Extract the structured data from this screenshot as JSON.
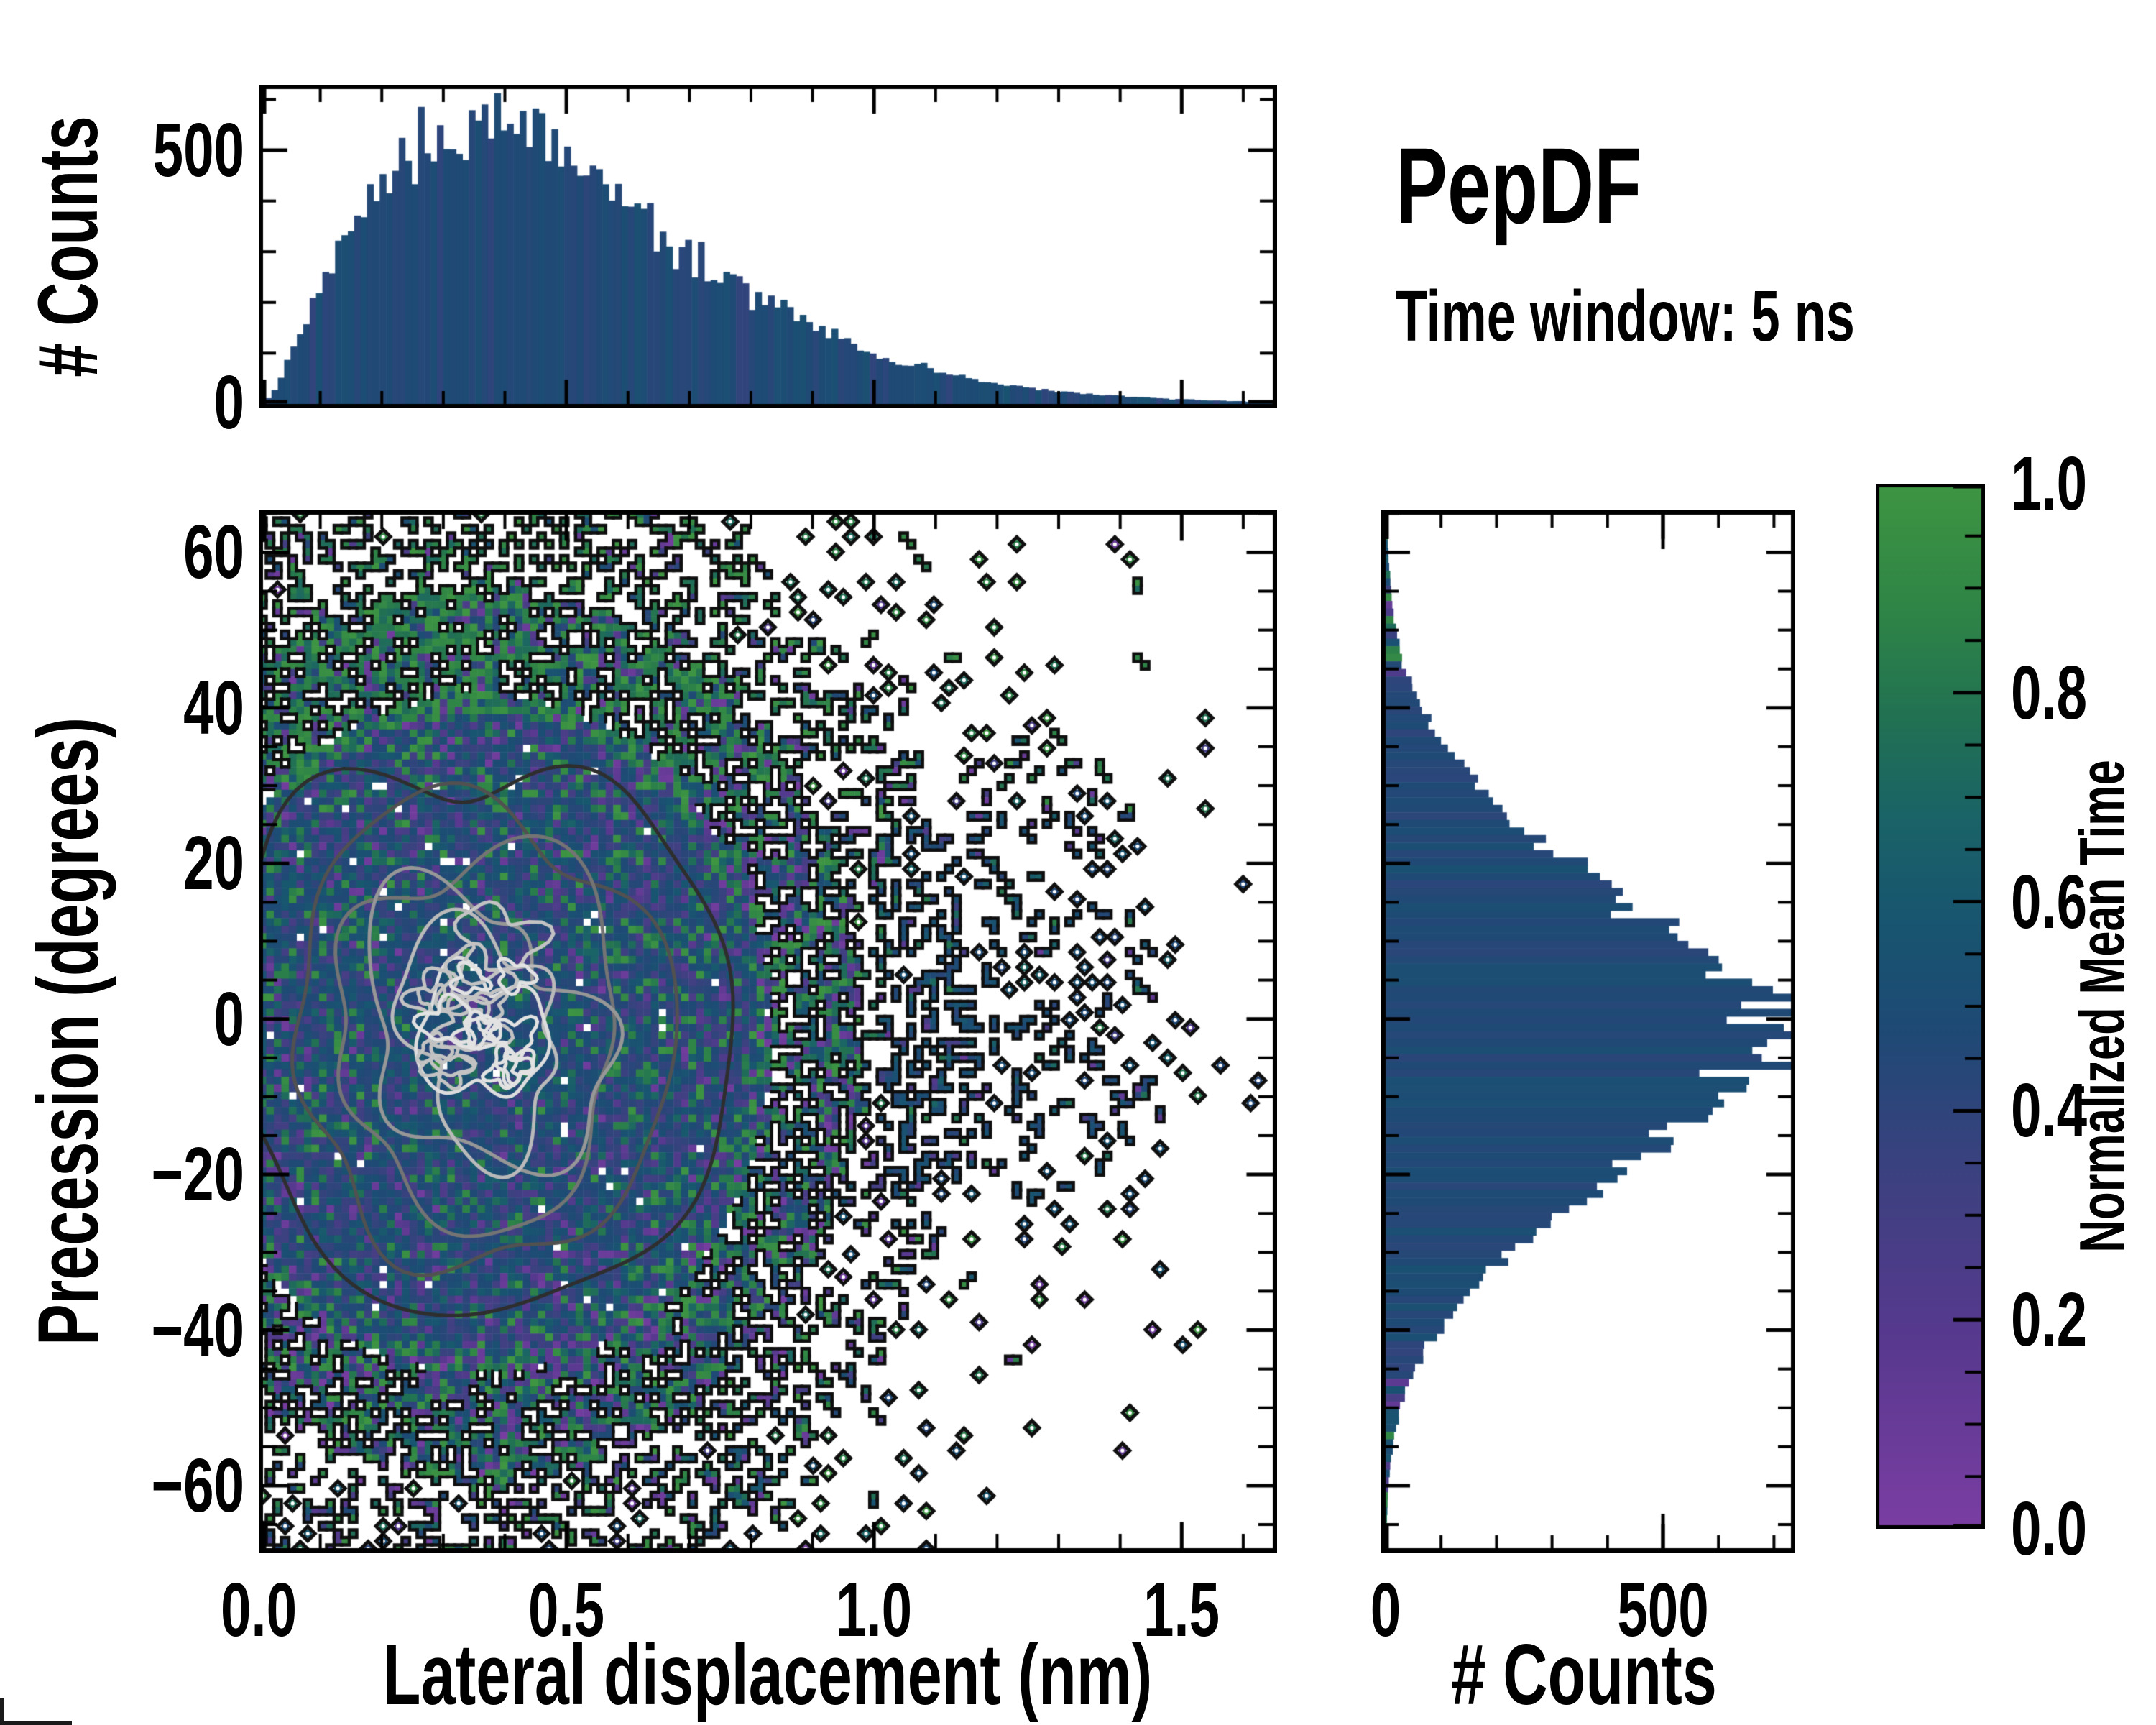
{
  "figure": {
    "title": "PepDF",
    "subtitle": "Time window: 5 ns"
  },
  "axes": {
    "top_hist": {
      "ylabel": "# Counts",
      "yticks": {
        "labels": [
          "0",
          "500"
        ],
        "values": [
          0,
          500
        ],
        "minor": [
          100,
          200,
          300,
          400,
          600
        ]
      }
    },
    "main": {
      "xlabel": "Lateral displacement (nm)",
      "ylabel": "Precession (degrees)",
      "xticks": {
        "labels": [
          "0.0",
          "0.5",
          "1.0",
          "1.5"
        ],
        "values": [
          0,
          0.5,
          1.0,
          1.5
        ],
        "minor_step": 0.1
      },
      "yticks": {
        "labels": [
          "60",
          "40",
          "20",
          "0",
          "−20",
          "−40",
          "−60"
        ],
        "values": [
          60,
          40,
          20,
          0,
          -20,
          -40,
          -60
        ],
        "minor_step": 5
      }
    },
    "right_hist": {
      "xlabel": "# Counts",
      "xticks": {
        "labels": [
          "0",
          "500"
        ],
        "values": [
          0,
          500
        ],
        "minor": [
          100,
          200,
          300,
          400,
          600,
          700
        ]
      }
    },
    "colorbar": {
      "label": "Normalized Mean Time",
      "ticks": {
        "labels": [
          "1.0",
          "0.8",
          "0.6",
          "0.4",
          "0.2",
          "0.0"
        ],
        "values": [
          1.0,
          0.8,
          0.6,
          0.4,
          0.2,
          0.0
        ],
        "minor_step": 0.05
      }
    }
  },
  "chart_data": [
    {
      "type": "bar",
      "name": "top_marginal_histogram",
      "title": "",
      "xlabel": "Lateral displacement (nm)",
      "ylabel": "# Counts",
      "xlim": [
        0,
        1.655
      ],
      "ylim": [
        0,
        637
      ],
      "n_bins": 160,
      "bar_color": "#15497B",
      "profile": {
        "x": [
          0,
          0.02,
          0.05,
          0.08,
          0.1,
          0.15,
          0.2,
          0.25,
          0.3,
          0.35,
          0.38,
          0.4,
          0.45,
          0.5,
          0.55,
          0.6,
          0.65,
          0.7,
          0.75,
          0.8,
          0.85,
          0.9,
          0.95,
          1.0,
          1.05,
          1.1,
          1.15,
          1.2,
          1.25,
          1.3,
          1.35,
          1.4,
          1.45,
          1.5,
          1.55,
          1.6,
          1.655
        ],
        "counts": [
          2,
          15,
          90,
          175,
          240,
          360,
          440,
          495,
          525,
          550,
          560,
          545,
          525,
          490,
          445,
          395,
          350,
          305,
          262,
          222,
          188,
          155,
          128,
          100,
          80,
          62,
          50,
          40,
          32,
          25,
          20,
          16,
          12,
          9,
          7,
          5,
          4
        ]
      }
    },
    {
      "type": "heatmap",
      "name": "precession_vs_displacement_2d_histogram",
      "xlabel": "Lateral displacement (nm)",
      "ylabel": "Precession (degrees)",
      "xlim": [
        0,
        1.655
      ],
      "ylim": [
        -68.6,
        65.4
      ],
      "grid": {
        "cols": 135,
        "rows": 138
      },
      "density_center": {
        "x": 0.36,
        "y": -2
      },
      "density_sigma": {
        "x": 0.5,
        "y": 46
      },
      "color_scale": {
        "label": "Normalized Mean Time",
        "range": [
          0,
          1
        ],
        "stops": [
          [
            0.0,
            "#7B3EA3"
          ],
          [
            0.18,
            "#58398F"
          ],
          [
            0.34,
            "#3C4180"
          ],
          [
            0.48,
            "#1E4A75"
          ],
          [
            0.58,
            "#185570"
          ],
          [
            0.68,
            "#1A6367"
          ],
          [
            0.78,
            "#227252"
          ],
          [
            0.88,
            "#2F8546"
          ],
          [
            1.0,
            "#3E9542"
          ]
        ]
      },
      "contour_levels": [
        {
          "f": 0.8,
          "color": "#2e2e2e",
          "lw": 5
        },
        {
          "f": 0.63,
          "color": "#515151",
          "lw": 5
        },
        {
          "f": 0.49,
          "color": "#747474",
          "lw": 5
        },
        {
          "f": 0.375,
          "color": "#979797",
          "lw": 5
        },
        {
          "f": 0.275,
          "color": "#bababa",
          "lw": 5
        },
        {
          "f": 0.19,
          "color": "#dddddd",
          "lw": 5
        }
      ],
      "boundary_color": "#0f0f0f"
    },
    {
      "type": "bar",
      "name": "right_marginal_histogram",
      "orientation": "horizontal",
      "xlabel": "# Counts",
      "ylabel": "Precession (degrees)",
      "xlim": [
        0,
        730
      ],
      "ylim": [
        -68.6,
        65.4
      ],
      "bar_color": "#15497B",
      "profile": {
        "y": [
          65,
          60,
          55,
          50,
          45,
          40,
          35,
          30,
          25,
          20,
          15,
          10,
          5,
          0,
          -2,
          -5,
          -10,
          -15,
          -20,
          -25,
          -30,
          -35,
          -40,
          -45,
          -50,
          -55,
          -60,
          -65
        ],
        "counts": [
          2,
          5,
          10,
          18,
          32,
          62,
          105,
          170,
          250,
          345,
          450,
          555,
          645,
          690,
          700,
          675,
          615,
          520,
          420,
          320,
          230,
          155,
          95,
          52,
          25,
          12,
          5,
          2
        ]
      }
    }
  ]
}
